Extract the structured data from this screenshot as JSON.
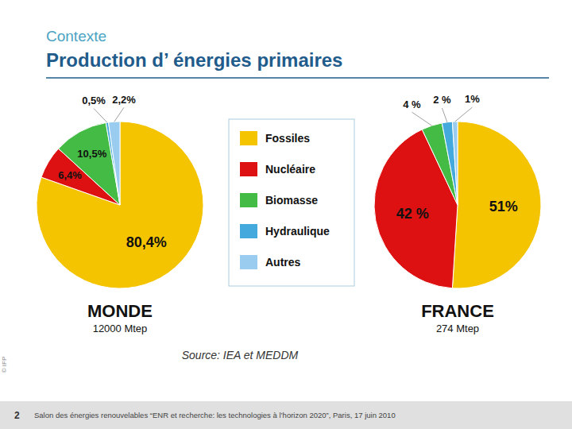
{
  "page": {
    "heading": "Contexte",
    "title": "Production d’ énergies primaires",
    "source": "Source: IEA et MEDDM",
    "footer": "Salon des énergies renouvelables “ENR et recherche: les technologies à l’horizon 2020”, Paris, 17 juin 2010",
    "slide_number": "2",
    "credit": "© IFP"
  },
  "chart_data": [
    {
      "type": "pie",
      "title": "MONDE",
      "subtitle": "12000 Mtep",
      "categories": [
        "Fossiles",
        "Nucléaire",
        "Biomasse",
        "Hydraulique",
        "Autres"
      ],
      "values": [
        80.4,
        6.4,
        10.5,
        0.5,
        2.2
      ],
      "value_labels": [
        "80,4%",
        "6,4%",
        "10,5%",
        "0,5%",
        "2,2%"
      ],
      "colors": [
        "#F5C400",
        "#DD1111",
        "#44BB44",
        "#44AADD",
        "#99CCEE"
      ],
      "data_labels": true,
      "legend": "right"
    },
    {
      "type": "pie",
      "title": "FRANCE",
      "subtitle": "274 Mtep",
      "categories": [
        "Fossiles",
        "Nucléaire",
        "Biomasse",
        "Hydraulique",
        "Autres"
      ],
      "values": [
        51,
        42,
        4,
        2,
        1
      ],
      "value_labels": [
        "51%",
        "42 %",
        "4 %",
        "2 %",
        "1%"
      ],
      "colors": [
        "#F5C400",
        "#DD1111",
        "#44BB44",
        "#44AADD",
        "#99CCEE"
      ],
      "data_labels": true
    }
  ]
}
